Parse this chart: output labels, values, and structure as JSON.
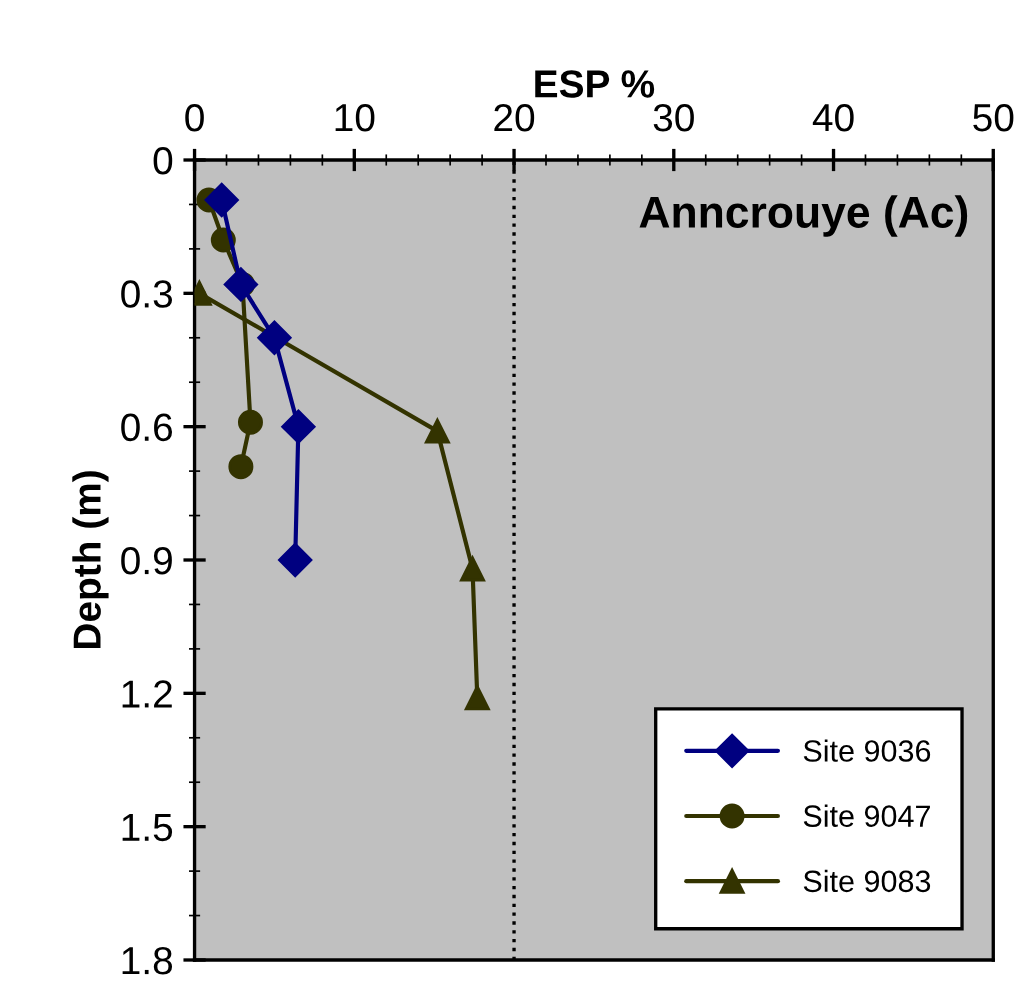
{
  "chart_data": {
    "type": "line",
    "xlabel": "ESP %",
    "ylabel": "Depth (m)",
    "annotations": [
      "Anncrouye (Ac)"
    ],
    "xlim": [
      0,
      50
    ],
    "xticks": [
      0,
      10,
      20,
      30,
      40,
      50
    ],
    "ylim": [
      1.8,
      0
    ],
    "yticks": [
      0,
      0.3,
      0.6,
      0.9,
      1.2,
      1.5,
      1.8
    ],
    "grid": false,
    "legend": "bottom right",
    "line_style": "solid",
    "ref_lines": [
      {
        "axis": "x",
        "value": 20,
        "color": "#000000",
        "line_style": "dotted"
      }
    ],
    "series": [
      {
        "name": "Site 9036",
        "color": "#000080",
        "marker": "diamond",
        "x": [
          1.7,
          2.9,
          5.0,
          6.5,
          6.3
        ],
        "values": [
          0.09,
          0.28,
          0.4,
          0.6,
          0.9
        ]
      },
      {
        "name": "Site 9047",
        "color": "#333300",
        "marker": "circle",
        "x": [
          0.9,
          1.8,
          3.0,
          3.5,
          2.9
        ],
        "values": [
          0.09,
          0.18,
          0.28,
          0.59,
          0.69
        ]
      },
      {
        "name": "Site 9083",
        "color": "#333300",
        "marker": "triangle",
        "x": [
          0.3,
          15.2,
          17.4,
          17.7
        ],
        "values": [
          0.3,
          0.61,
          0.92,
          1.21
        ]
      }
    ]
  }
}
